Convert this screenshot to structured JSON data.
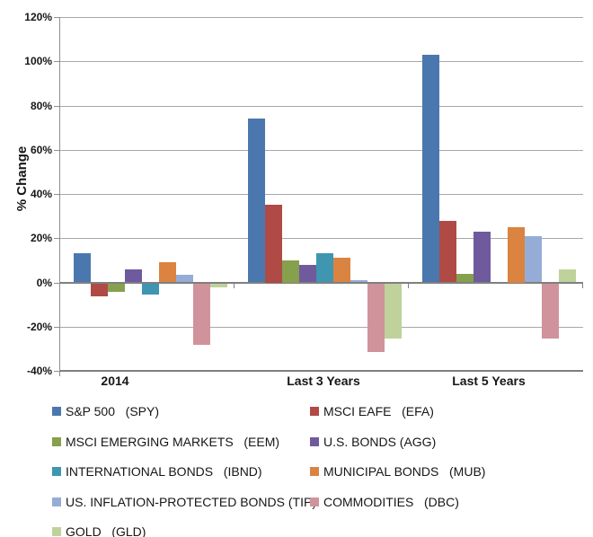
{
  "chart_data": {
    "type": "bar",
    "title": "",
    "ylabel": "% Change",
    "xlabel": "",
    "categories": [
      "2014",
      "Last 3 Years",
      "Last 5 Years"
    ],
    "series": [
      {
        "key": "spy",
        "name": "S&P 500   (SPY)",
        "color": "#4A78AE",
        "values": [
          13,
          74,
          103
        ]
      },
      {
        "key": "efa",
        "name": "MSCI EAFE   (EFA)",
        "color": "#AF4A45",
        "values": [
          -6,
          35,
          28
        ]
      },
      {
        "key": "eem",
        "name": "MSCI EMERGING MARKETS   (EEM)",
        "color": "#86A04D",
        "values": [
          -4,
          10,
          4
        ]
      },
      {
        "key": "agg",
        "name": "U.S. BONDS (AGG)",
        "color": "#6F5A9D",
        "values": [
          6,
          8,
          23
        ]
      },
      {
        "key": "ibnd",
        "name": "INTERNATIONAL BONDS   (IBND)",
        "color": "#3E96B1",
        "values": [
          -5,
          13,
          null
        ]
      },
      {
        "key": "mub",
        "name": "MUNICIPAL BONDS   (MUB)",
        "color": "#DB8340",
        "values": [
          9,
          11,
          25
        ]
      },
      {
        "key": "tip",
        "name": "US. INFLATION-PROTECTED BONDS (TIP)",
        "color": "#95ACD7",
        "values": [
          3.5,
          1,
          21
        ]
      },
      {
        "key": "dbc",
        "name": "COMMODITIES   (DBC)",
        "color": "#D0939B",
        "values": [
          -28,
          -31,
          -25
        ]
      },
      {
        "key": "gld",
        "name": "GOLD   (GLD)",
        "color": "#BFD29B",
        "values": [
          -2,
          -25,
          6
        ]
      }
    ],
    "ylim": [
      -40,
      120
    ],
    "ytick_step": 20,
    "ytick_labels": [
      "120%",
      "100%",
      "80%",
      "60%",
      "40%",
      "20%",
      "0%",
      "-20%",
      "-40%"
    ],
    "grid": true,
    "legend_position": "bottom"
  },
  "colors": {
    "gridline": "#A8A8A8",
    "zero_line": "#7F7F7F",
    "axis_line": "#8F8F8F",
    "text": "#161616",
    "background": "#FFFFFF"
  }
}
